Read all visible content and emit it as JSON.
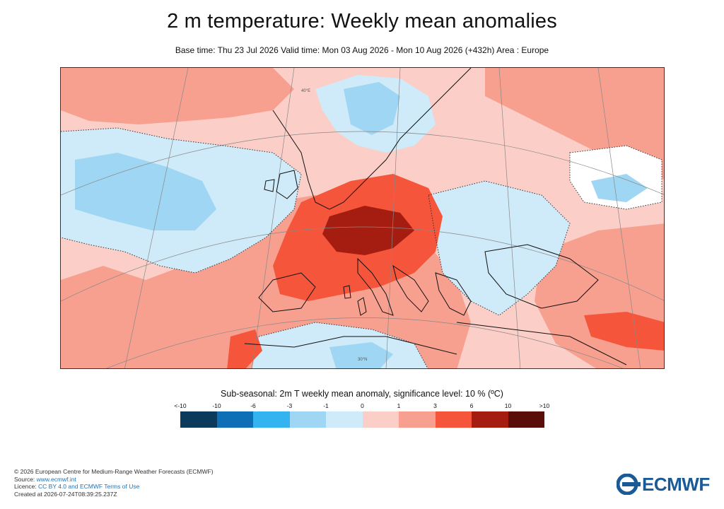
{
  "title": "2 m temperature: Weekly mean anomalies",
  "subtitle": "Base time: Thu 23 Jul 2026 Valid time: Mon 03 Aug 2026 - Mon 10 Aug 2026 (+432h) Area : Europe",
  "map": {
    "area": "Europe",
    "graticule_labels": [
      "40°E",
      "30°N"
    ],
    "colors": {
      "strong_pos": "#a51c11",
      "pos": "#f4553b",
      "mild_pos": "#f7a090",
      "weak_pos": "#fbcfc7",
      "weak_neg": "#cfeaf8",
      "mild_neg": "#9fd6f3",
      "coast": "#111111"
    }
  },
  "legend": {
    "title": "Sub-seasonal: 2m T weekly mean anomaly, significance level: 10 % (ºC)",
    "ticks": [
      "<-10",
      "-10",
      "-6",
      "-3",
      "-1",
      "0",
      "1",
      "3",
      "6",
      "10",
      ">10"
    ],
    "colors": [
      "#0b3a5c",
      "#0f6fb6",
      "#33b3ef",
      "#9fd6f3",
      "#cfeaf8",
      "#fbcfc7",
      "#f7a090",
      "#f4553b",
      "#a51c11",
      "#5a0e0a"
    ]
  },
  "footer": {
    "copyright": "© 2026 European Centre for Medium-Range Weather Forecasts (ECMWF)",
    "source_label": "Source: ",
    "source_link": "www.ecmwf.int",
    "licence_label": "Licence: ",
    "licence_link": "CC BY 4.0 and ECMWF Terms of Use",
    "created": "Created at 2026-07-24T08:39:25.237Z"
  },
  "logo": {
    "text": "ECMWF"
  }
}
